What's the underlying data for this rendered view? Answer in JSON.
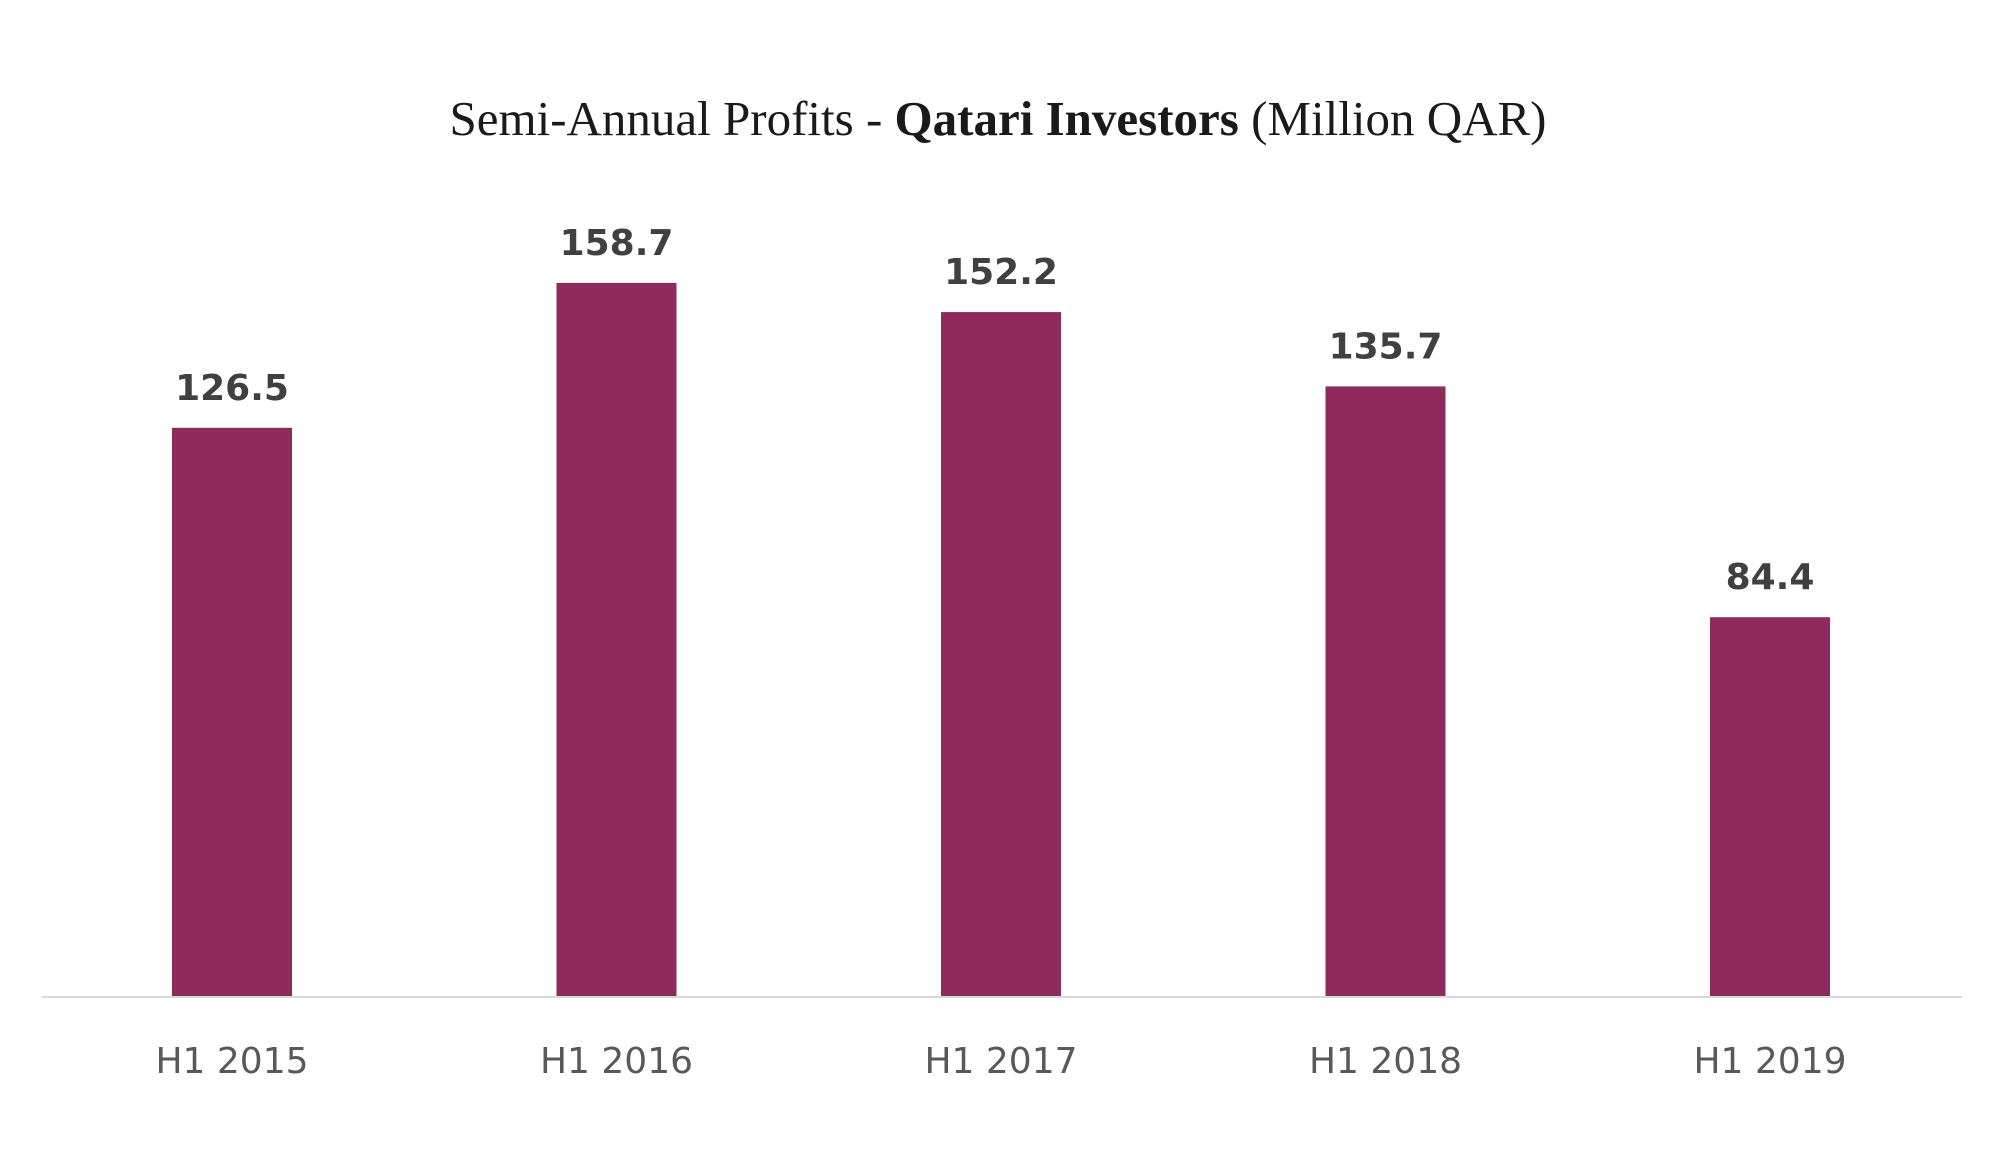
{
  "chart_data": {
    "type": "bar",
    "title_parts": {
      "prefix": "Semi-Annual Profits - ",
      "bold": "Qatari Investors",
      "suffix": " (Million QAR)"
    },
    "categories": [
      "H1 2015",
      "H1 2016",
      "H1 2017",
      "H1 2018",
      "H1 2019"
    ],
    "values": [
      126.5,
      158.7,
      152.2,
      135.7,
      84.4
    ],
    "value_labels": [
      "126.5",
      "158.7",
      "152.2",
      "135.7",
      "84.4"
    ],
    "xlabel": "",
    "ylabel": "",
    "ylim": [
      0,
      160
    ],
    "grid": false,
    "legend": "none",
    "colors": {
      "bar": "#8e2a5c",
      "axis": "#d9d9d9"
    }
  }
}
